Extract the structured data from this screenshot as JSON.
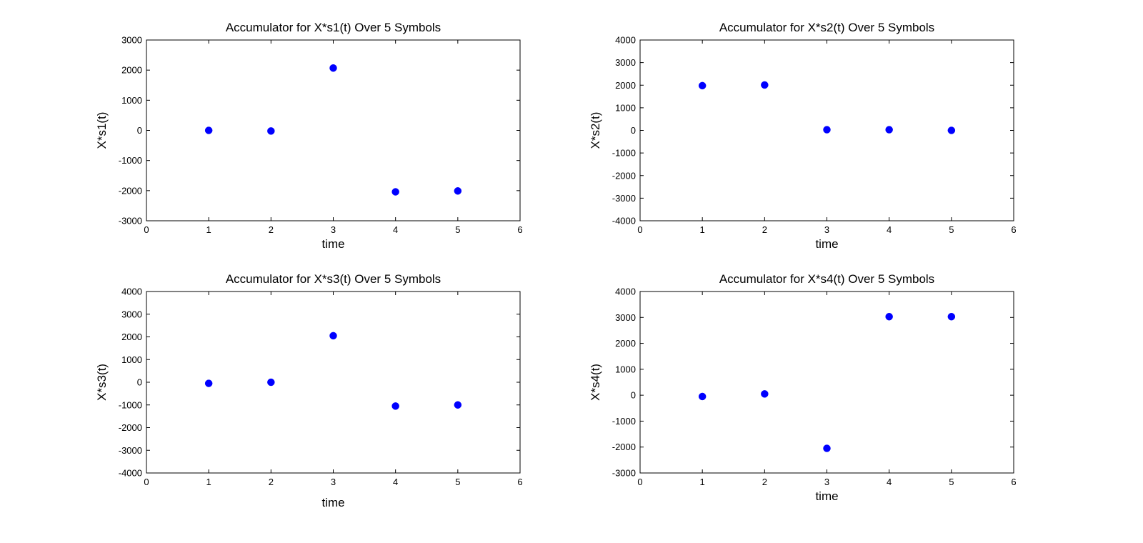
{
  "chart_data": [
    {
      "type": "scatter",
      "title": "Accumulator for X*s1(t) Over 5 Symbols",
      "xlabel": "time",
      "ylabel": "X*s1(t)",
      "xlim": [
        0,
        6
      ],
      "ylim": [
        -3000,
        3000
      ],
      "xticks": [
        0,
        1,
        2,
        3,
        4,
        5,
        6
      ],
      "yticks": [
        -3000,
        -2000,
        -1000,
        0,
        1000,
        2000,
        3000
      ],
      "grid": false,
      "marker_color": "#0000ff",
      "x": [
        1,
        2,
        3,
        4,
        5
      ],
      "y": [
        0,
        -20,
        2070,
        -2040,
        -2010
      ]
    },
    {
      "type": "scatter",
      "title": "Accumulator for X*s2(t) Over 5 Symbols",
      "xlabel": "time",
      "ylabel": "X*s2(t)",
      "xlim": [
        0,
        6
      ],
      "ylim": [
        -4000,
        4000
      ],
      "xticks": [
        0,
        1,
        2,
        3,
        4,
        5,
        6
      ],
      "yticks": [
        -4000,
        -3000,
        -2000,
        -1000,
        0,
        1000,
        2000,
        3000,
        4000
      ],
      "grid": false,
      "marker_color": "#0000ff",
      "x": [
        1,
        2,
        3,
        4,
        5
      ],
      "y": [
        1980,
        2010,
        30,
        30,
        0
      ]
    },
    {
      "type": "scatter",
      "title": "Accumulator for X*s3(t) Over 5 Symbols",
      "xlabel": "time",
      "ylabel": "X*s3(t)",
      "xlim": [
        0,
        6
      ],
      "ylim": [
        -4000,
        4000
      ],
      "xticks": [
        0,
        1,
        2,
        3,
        4,
        5,
        6
      ],
      "yticks": [
        -4000,
        -3000,
        -2000,
        -1000,
        0,
        1000,
        2000,
        3000,
        4000
      ],
      "grid": false,
      "marker_color": "#0000ff",
      "x": [
        1,
        2,
        3,
        4,
        5
      ],
      "y": [
        -50,
        0,
        2050,
        -1050,
        -1000
      ]
    },
    {
      "type": "scatter",
      "title": "Accumulator for X*s4(t) Over 5 Symbols",
      "xlabel": "time",
      "ylabel": "X*s4(t)",
      "xlim": [
        0,
        6
      ],
      "ylim": [
        -3000,
        4000
      ],
      "xticks": [
        0,
        1,
        2,
        3,
        4,
        5,
        6
      ],
      "yticks": [
        -3000,
        -2000,
        -1000,
        0,
        1000,
        2000,
        3000,
        4000
      ],
      "grid": false,
      "marker_color": "#0000ff",
      "x": [
        1,
        2,
        3,
        4,
        5
      ],
      "y": [
        -50,
        50,
        -2050,
        3030,
        3030
      ]
    }
  ]
}
